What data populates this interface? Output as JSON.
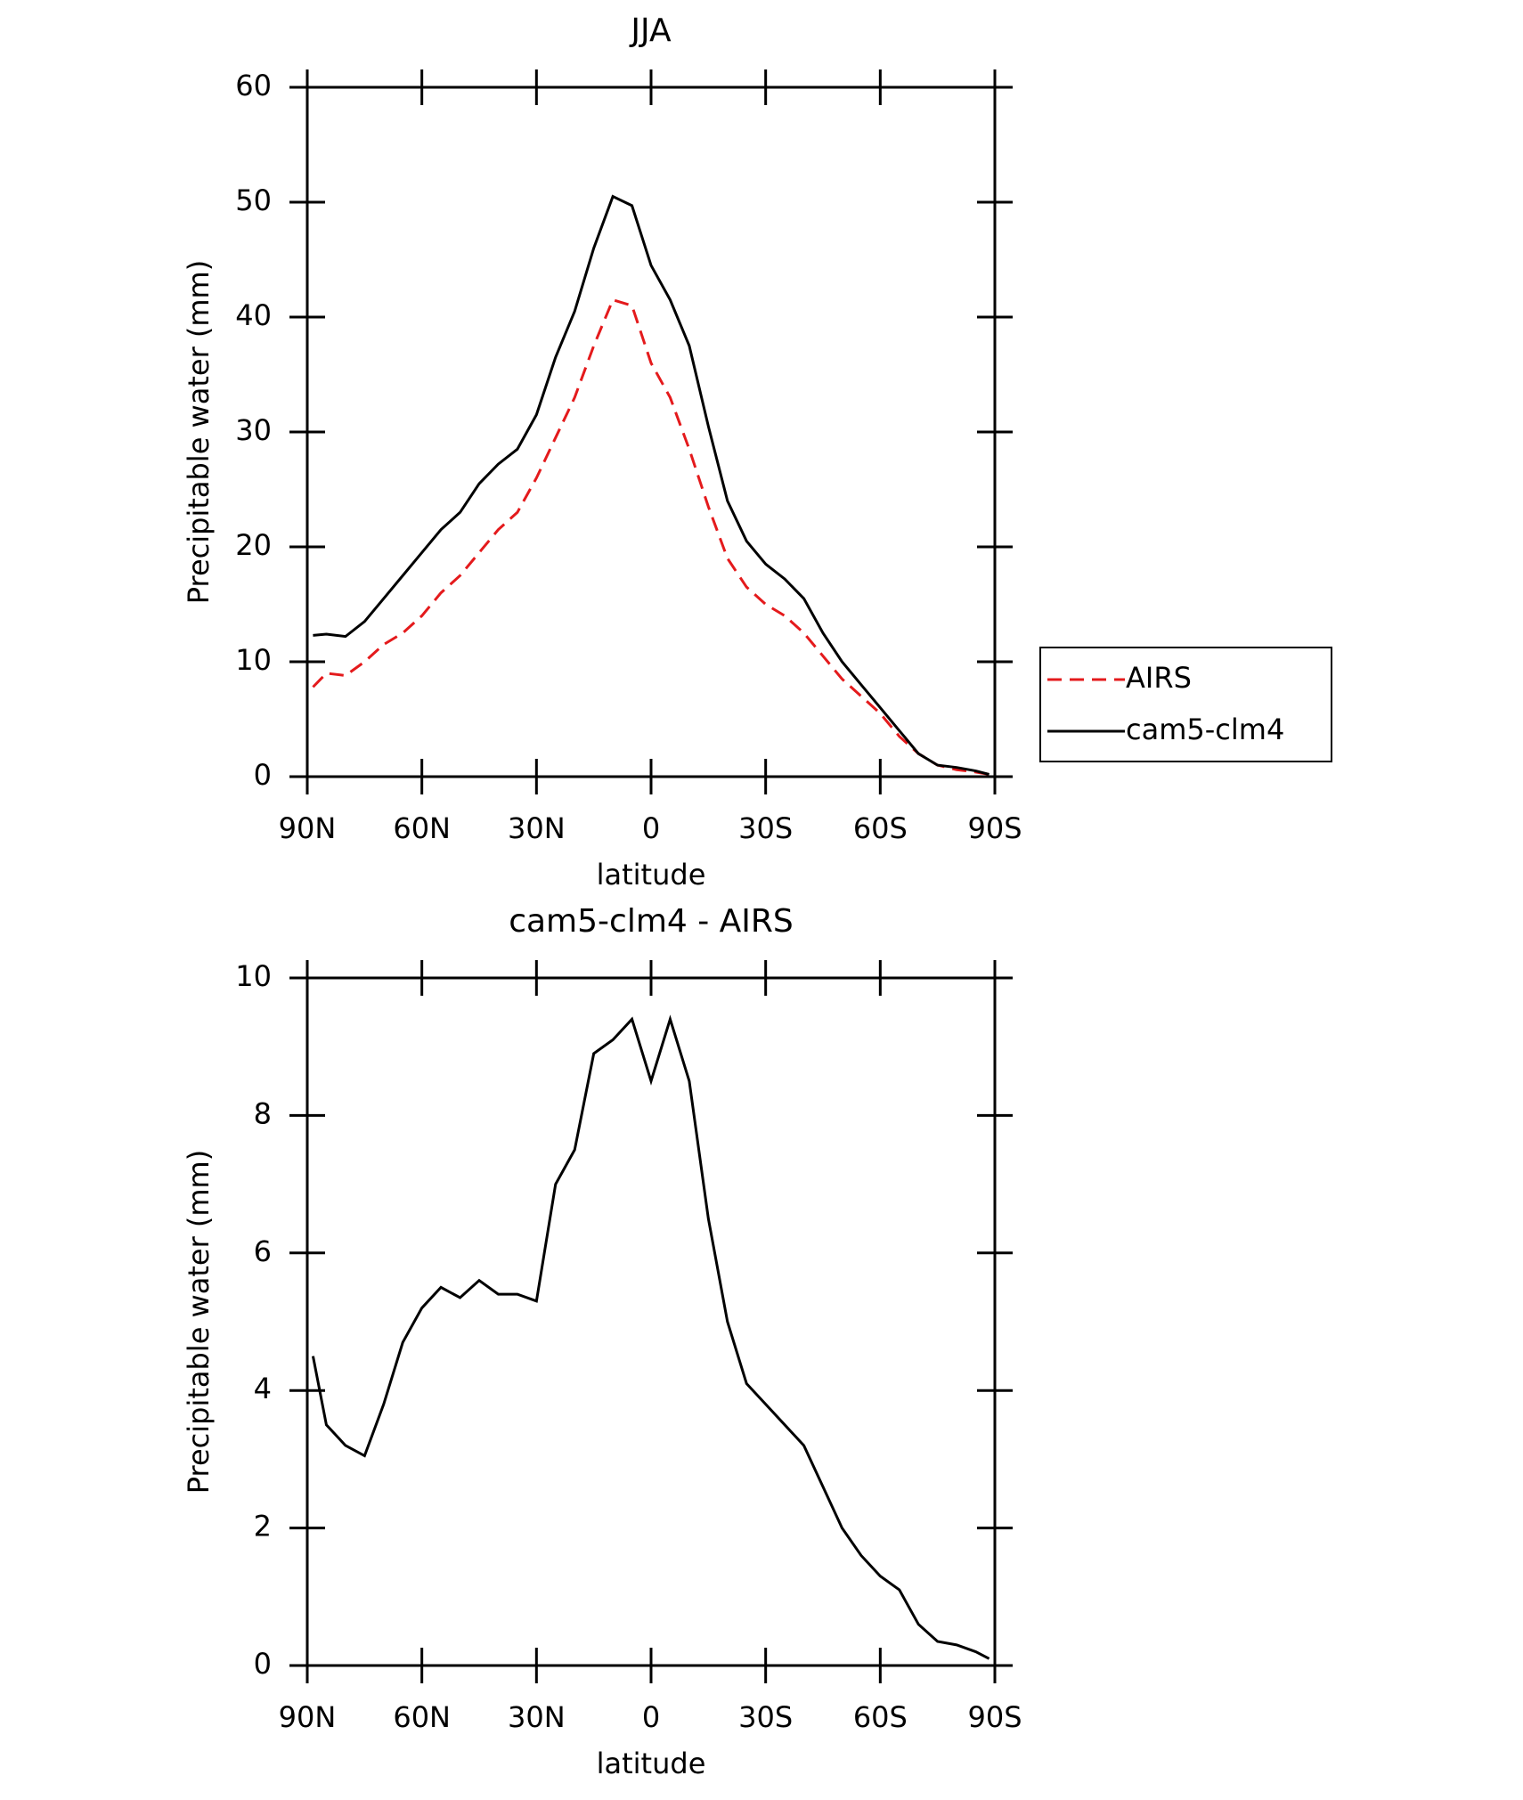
{
  "chart_data": [
    {
      "type": "line",
      "title": "JJA",
      "xlabel": "latitude",
      "ylabel": "Precipitable water (mm)",
      "x": [
        88.5,
        85,
        80,
        75,
        70,
        65,
        60,
        55,
        50,
        45,
        40,
        35,
        30,
        25,
        20,
        15,
        10,
        5,
        0,
        -5,
        -10,
        -15,
        -20,
        -25,
        -30,
        -35,
        -40,
        -45,
        -50,
        -55,
        -60,
        -65,
        -70,
        -75,
        -80,
        -85,
        -88.5
      ],
      "series": [
        {
          "name": "AIRS",
          "color": "#e41a1c",
          "dash": "dashed",
          "values": [
            7.8,
            9,
            8.8,
            10,
            11.5,
            12.5,
            14,
            16,
            17.5,
            19.5,
            21.5,
            23,
            26,
            29.5,
            33,
            37.5,
            41.5,
            41,
            36,
            33,
            28.5,
            23.5,
            19,
            16.5,
            15,
            14,
            12.5,
            10.5,
            8.5,
            7,
            5.5,
            3.5,
            2,
            1,
            0.6,
            0.4,
            0.2
          ]
        },
        {
          "name": "cam5-clm4",
          "color": "#000000",
          "dash": "solid",
          "values": [
            12.3,
            12.4,
            12.2,
            13.5,
            15.5,
            17.5,
            19.5,
            21.5,
            23,
            25.5,
            27.2,
            28.5,
            31.5,
            36.5,
            40.5,
            46,
            50.5,
            49.7,
            44.5,
            41.5,
            37.5,
            30.5,
            24,
            20.5,
            18.5,
            17.2,
            15.5,
            12.5,
            10,
            8,
            6,
            4,
            2,
            1,
            0.8,
            0.5,
            0.2
          ]
        }
      ],
      "xlim": [
        90,
        -90
      ],
      "xticks": [
        {
          "value": 90,
          "label": "90N"
        },
        {
          "value": 60,
          "label": "60N"
        },
        {
          "value": 30,
          "label": "30N"
        },
        0,
        {
          "value": -30,
          "label": "30S"
        },
        {
          "value": -60,
          "label": "60S"
        },
        {
          "value": -90,
          "label": "90S"
        }
      ],
      "ylim": [
        0,
        60
      ],
      "yticks": [
        0,
        10,
        20,
        30,
        40,
        50,
        60
      ],
      "legend": "right"
    },
    {
      "type": "line",
      "title": "cam5-clm4 - AIRS",
      "xlabel": "latitude",
      "ylabel": "Precipitable water (mm)",
      "x": [
        88.5,
        85,
        80,
        75,
        70,
        65,
        60,
        55,
        50,
        45,
        40,
        35,
        30,
        25,
        20,
        15,
        10,
        5,
        0,
        -5,
        -10,
        -15,
        -20,
        -25,
        -30,
        -35,
        -40,
        -45,
        -50,
        -55,
        -60,
        -65,
        -70,
        -75,
        -80,
        -85,
        -88.5
      ],
      "series": [
        {
          "color": "#000000",
          "dash": "solid",
          "values": [
            4.5,
            3.5,
            3.2,
            3.05,
            3.8,
            4.7,
            5.2,
            5.5,
            5.35,
            5.6,
            5.4,
            5.4,
            5.3,
            7.0,
            7.5,
            8.9,
            9.1,
            9.4,
            8.5,
            9.4,
            8.5,
            6.5,
            5.0,
            4.1,
            3.8,
            3.5,
            3.2,
            2.6,
            2.0,
            1.6,
            1.3,
            1.1,
            0.6,
            0.35,
            0.3,
            0.2,
            0.1
          ]
        }
      ],
      "xlim": [
        90,
        -90
      ],
      "xticks": [
        {
          "value": 90,
          "label": "90N"
        },
        {
          "value": 60,
          "label": "60N"
        },
        {
          "value": 30,
          "label": "30N"
        },
        0,
        {
          "value": -30,
          "label": "30S"
        },
        {
          "value": -60,
          "label": "60S"
        },
        {
          "value": -90,
          "label": "90S"
        }
      ],
      "ylim": [
        0,
        10
      ],
      "yticks": [
        0,
        2,
        4,
        6,
        8,
        10
      ]
    }
  ]
}
